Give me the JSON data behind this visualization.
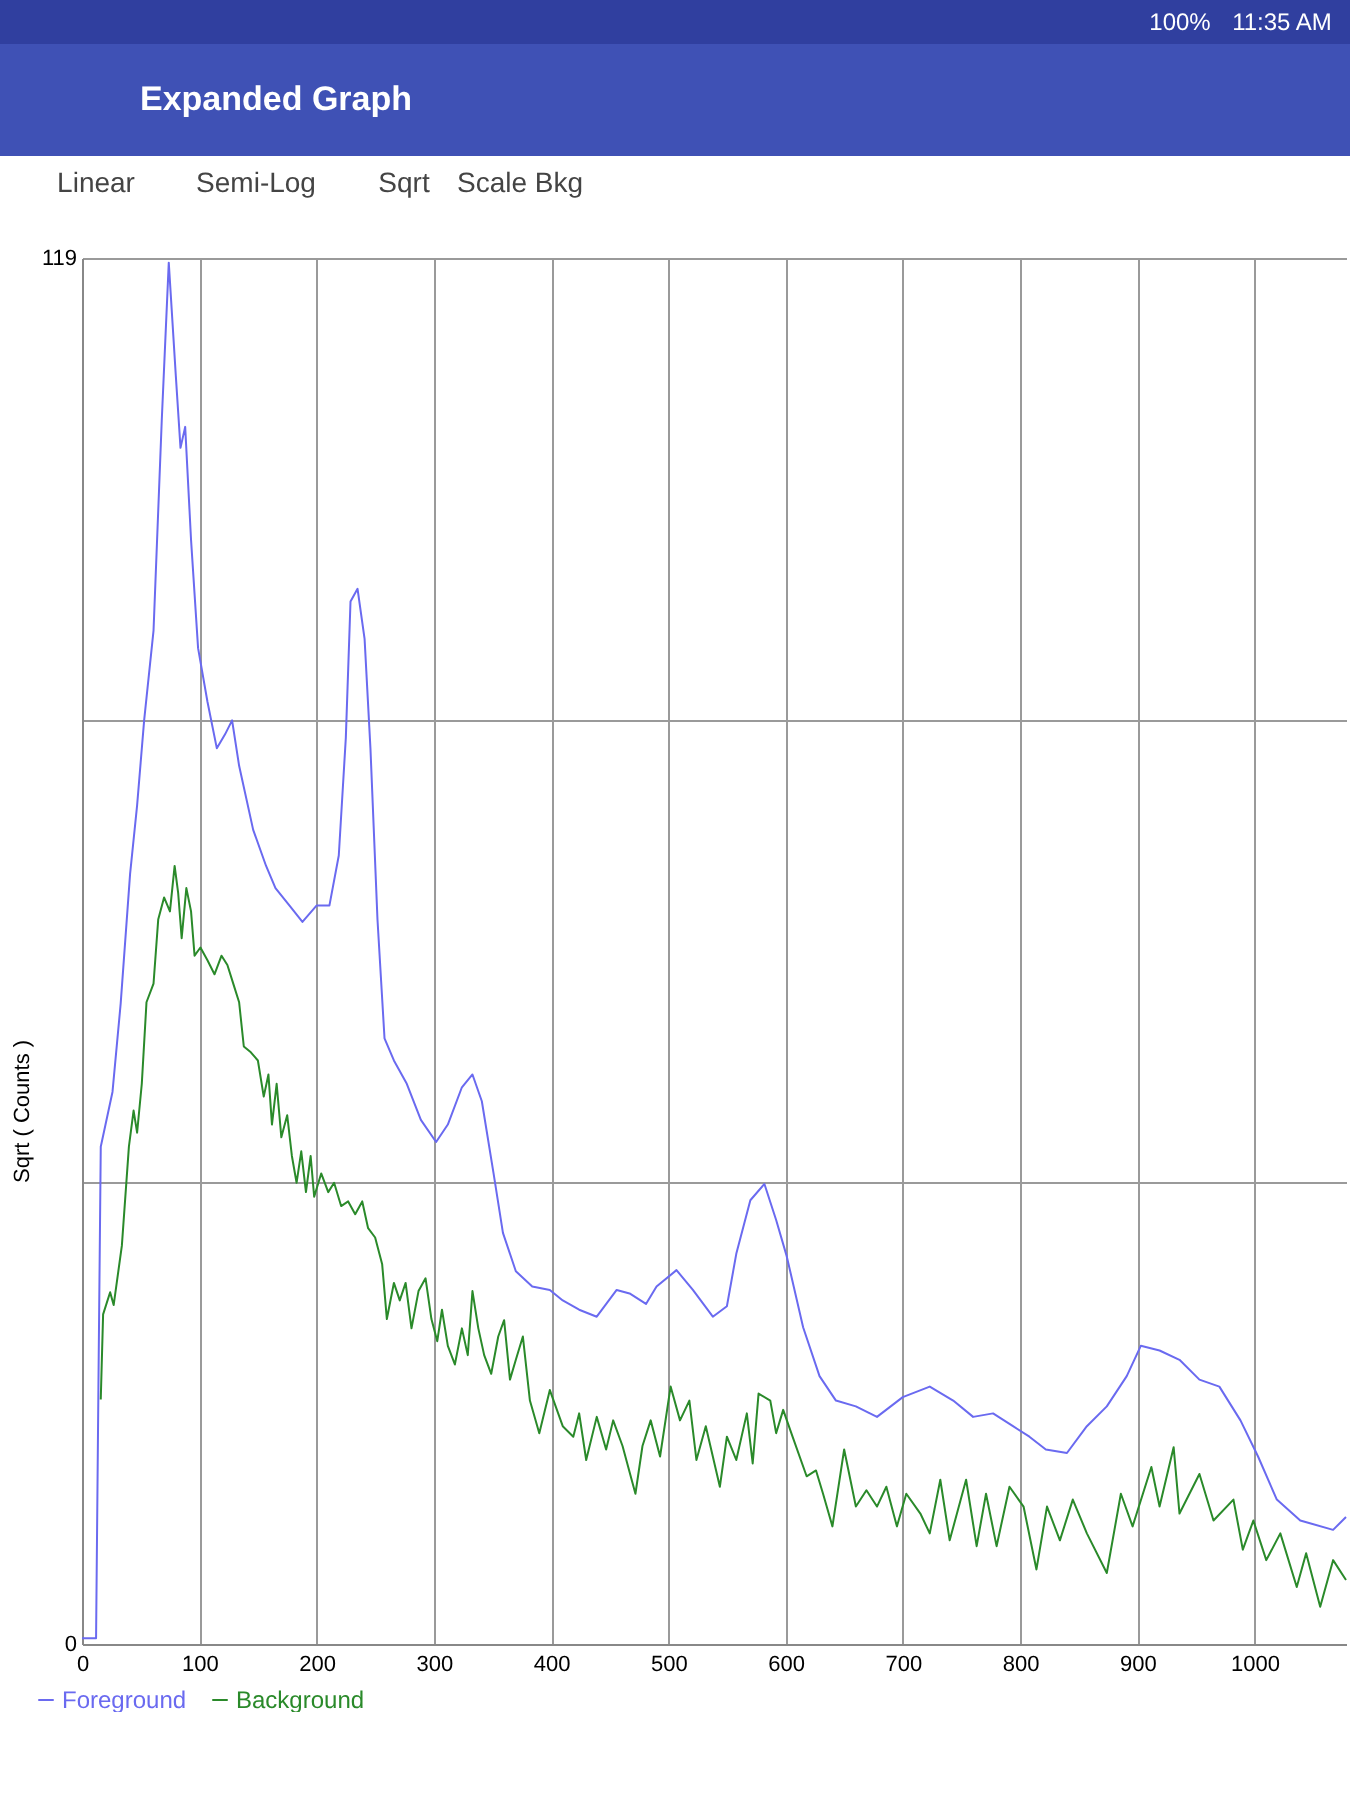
{
  "chart_data": {
    "type": "line",
    "title": "Expanded Graph",
    "annotations": [
      "100%",
      "11:35 AM",
      "Linear",
      "Semi-Log",
      "Sqrt",
      "Scale Bkg"
    ],
    "ylabel": "Sqrt ( Counts )",
    "xlim": [
      0,
      1078
    ],
    "xticks": [
      0,
      100,
      200,
      300,
      400,
      500,
      600,
      700,
      800,
      900,
      1000
    ],
    "ylim": [
      0,
      119
    ],
    "yticks": [
      0,
      {
        "value": 39.67,
        "label": null
      },
      {
        "value": 79.33,
        "label": null
      },
      119
    ],
    "grid": true,
    "legend": "bottom left",
    "series": [
      {
        "name": "Foreground",
        "color": "#6a6af0",
        "x": [
          0,
          12,
          14,
          16,
          26,
          33,
          41,
          47,
          53,
          61,
          68,
          74,
          80,
          84,
          88,
          93,
          99,
          107,
          115,
          122,
          128,
          134,
          146,
          157,
          165,
          177,
          188,
          200,
          211,
          219,
          225,
          229,
          235,
          241,
          246,
          252,
          258,
          266,
          277,
          289,
          302,
          312,
          324,
          333,
          341,
          351,
          359,
          370,
          384,
          399,
          410,
          424,
          439,
          456,
          467,
          481,
          490,
          507,
          521,
          538,
          550,
          558,
          570,
          582,
          592,
          601,
          615,
          629,
          643,
          660,
          678,
          700,
          723,
          743,
          760,
          777,
          794,
          808,
          822,
          840,
          857,
          874,
          891,
          903,
          919,
          936,
          953,
          970,
          988,
          1003,
          1019,
          1039,
          1067,
          1078
        ],
        "values": [
          0.5,
          0.5,
          22,
          42.7,
          47.4,
          55,
          66.1,
          72,
          79.3,
          87.0,
          105,
          118.6,
          108.9,
          102.7,
          104.5,
          94.8,
          85.5,
          80.9,
          76.9,
          78.1,
          79.3,
          75.4,
          69.9,
          66.8,
          64.9,
          63.4,
          62.0,
          63.4,
          63.4,
          67.7,
          77.8,
          89.5,
          90.6,
          86.3,
          76.9,
          62.2,
          52.0,
          50.1,
          48.1,
          45.0,
          43.1,
          44.6,
          47.8,
          48.9,
          46.6,
          40.4,
          35.3,
          32.0,
          30.7,
          30.4,
          29.5,
          28.7,
          28.1,
          30.4,
          30.1,
          29.2,
          30.7,
          32.1,
          30.4,
          28.1,
          29.0,
          33.5,
          38.1,
          39.5,
          36.4,
          33.3,
          27.2,
          23.0,
          20.9,
          20.4,
          19.5,
          21.2,
          22.1,
          20.9,
          19.5,
          19.8,
          18.7,
          17.8,
          16.7,
          16.4,
          18.7,
          20.4,
          23.0,
          25.6,
          25.2,
          24.4,
          22.7,
          22.1,
          19.2,
          16.1,
          12.4,
          10.6,
          9.8,
          10.9
        ]
      },
      {
        "name": "Background",
        "color": "#2a8a2a",
        "x": [
          16,
          18,
          24,
          27,
          34,
          40,
          44,
          47,
          51,
          55,
          61,
          65,
          70,
          75,
          79,
          82,
          85,
          89,
          93,
          96,
          101,
          107,
          113,
          119,
          124,
          129,
          134,
          138,
          144,
          150,
          155,
          159,
          162,
          166,
          170,
          175,
          179,
          183,
          187,
          191,
          195,
          198,
          204,
          210,
          215,
          221,
          227,
          233,
          239,
          244,
          250,
          256,
          260,
          266,
          271,
          276,
          281,
          287,
          293,
          298,
          303,
          307,
          312,
          318,
          324,
          329,
          333,
          338,
          343,
          349,
          355,
          360,
          365,
          370,
          376,
          382,
          390,
          399,
          410,
          419,
          424,
          430,
          439,
          447,
          453,
          461,
          472,
          478,
          485,
          493,
          502,
          510,
          518,
          524,
          532,
          544,
          550,
          558,
          567,
          572,
          577,
          587,
          592,
          598,
          606,
          618,
          626,
          632,
          640,
          650,
          660,
          669,
          678,
          686,
          695,
          703,
          715,
          723,
          732,
          740,
          754,
          763,
          771,
          780,
          791,
          803,
          814,
          823,
          834,
          845,
          857,
          874,
          886,
          896,
          912,
          919,
          931,
          936,
          953,
          965,
          982,
          990,
          999,
          1010,
          1022,
          1036,
          1044,
          1056,
          1067,
          1078
        ],
        "values": [
          21,
          28.3,
          30.2,
          29.1,
          34.2,
          42.7,
          45.8,
          43.9,
          48.1,
          55.1,
          56.7,
          62.2,
          64.1,
          62.9,
          66.8,
          64.5,
          60.6,
          64.9,
          62.9,
          59.1,
          59.8,
          58.7,
          57.5,
          59.1,
          58.3,
          56.7,
          55.1,
          51.3,
          50.8,
          50.1,
          47.0,
          48.9,
          44.6,
          48.1,
          43.5,
          45.4,
          41.9,
          39.6,
          42.3,
          38.8,
          41.9,
          38.4,
          40.4,
          38.8,
          39.6,
          37.6,
          38.0,
          36.9,
          38.0,
          35.7,
          34.9,
          32.6,
          27.9,
          31.0,
          29.5,
          31.0,
          27.1,
          30.3,
          31.4,
          27.9,
          26.0,
          28.7,
          25.6,
          24.0,
          27.1,
          24.8,
          30.3,
          27.1,
          24.8,
          23.2,
          26.4,
          27.8,
          22.7,
          24.4,
          26.4,
          20.9,
          18.1,
          21.8,
          18.7,
          17.8,
          19.8,
          15.8,
          19.5,
          16.7,
          19.2,
          17.0,
          12.9,
          17.0,
          19.2,
          16.1,
          22.1,
          19.2,
          20.9,
          15.8,
          18.7,
          13.5,
          17.8,
          15.8,
          19.8,
          15.5,
          21.5,
          20.9,
          18.1,
          20.1,
          17.8,
          14.4,
          14.9,
          12.9,
          10.1,
          16.7,
          11.8,
          13.2,
          11.8,
          13.5,
          10.1,
          12.9,
          11.2,
          9.5,
          14.1,
          8.9,
          14.1,
          8.4,
          12.9,
          8.4,
          13.5,
          11.8,
          6.4,
          11.8,
          8.9,
          12.4,
          9.5,
          6.1,
          12.9,
          10.1,
          15.2,
          11.8,
          16.9,
          11.2,
          14.6,
          10.6,
          12.4,
          8.1,
          10.6,
          7.2,
          9.5,
          4.9,
          7.8,
          3.2,
          7.2,
          5.5
        ]
      }
    ]
  }
}
